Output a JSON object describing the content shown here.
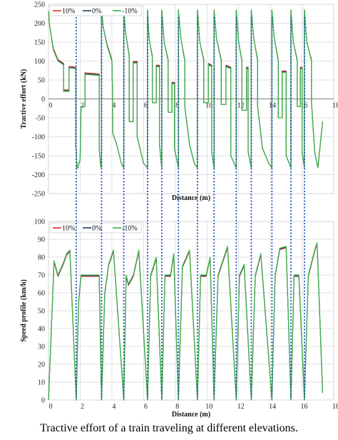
{
  "caption": "Tractive effort of a train traveling at different elevations.",
  "colors": {
    "plus10": "#e8262b",
    "zero": "#1f3864",
    "minus10": "#3cb34a",
    "divider": "#1f4fbf",
    "grid": "#d9d9d9"
  },
  "chart_data": [
    {
      "type": "line",
      "title": "",
      "xlabel": "Distance (m)",
      "ylabel": "Tractive effort (kN)",
      "xlim": [
        0,
        18
      ],
      "ylim": [
        -250,
        250
      ],
      "xticks": [
        "0",
        "2",
        "4",
        "6",
        "8",
        "10",
        "12",
        "14",
        "16",
        "18"
      ],
      "yticks": [
        "250",
        "200",
        "150",
        "100",
        "50",
        "0",
        "-50",
        "-100",
        "-150",
        "-200",
        "-250"
      ],
      "grid": true,
      "legend": "top-left",
      "series": [
        {
          "name": "10%",
          "color": "#e8262b",
          "x": [
            0.0,
            0.05,
            0.3,
            0.6,
            0.95,
            0.95,
            1.3,
            1.3,
            1.72,
            1.72,
            1.78,
            1.8,
            1.88
          ],
          "y": [
            232,
            200,
            130,
            100,
            90,
            20,
            20,
            82,
            80,
            -120,
            -170,
            -180,
            -182
          ]
        },
        {
          "name": "0%",
          "color": "#1f3864",
          "x": [
            0.0,
            0.05,
            0.3,
            0.6,
            0.95,
            0.95,
            1.3,
            1.3,
            1.72,
            1.72,
            1.78,
            1.8,
            1.88
          ],
          "y": [
            232,
            200,
            130,
            100,
            90,
            20,
            20,
            82,
            80,
            -120,
            -170,
            -180,
            -182
          ]
        },
        {
          "name": "-10%",
          "color": "#3cb34a",
          "x": [
            0.0,
            0.05,
            0.3,
            0.6,
            0.95,
            0.95,
            1.3,
            1.3,
            1.72,
            1.72,
            1.78,
            1.8,
            1.88
          ],
          "y": [
            232,
            200,
            130,
            100,
            90,
            20,
            20,
            82,
            80,
            -120,
            -170,
            -180,
            -182
          ]
        }
      ],
      "dividers_x": [
        1.75,
        3.35,
        4.75,
        6.25,
        7.15,
        8.2,
        9.4,
        10.45,
        11.85,
        12.8,
        14.1,
        15.3,
        16.15
      ]
    },
    {
      "type": "line",
      "title": "",
      "xlabel": "Distance (m)",
      "ylabel": "Speed profile (km/h)",
      "xlim": [
        0,
        18
      ],
      "ylim": [
        0,
        100
      ],
      "xticks": [
        "0",
        "2",
        "4",
        "6",
        "8",
        "10",
        "12",
        "14",
        "16",
        "18"
      ],
      "yticks": [
        "100",
        "90",
        "80",
        "70",
        "60",
        "50",
        "40",
        "30",
        "20",
        "10",
        "0"
      ],
      "grid": true,
      "legend": "top-left",
      "series": [
        {
          "name": "10%",
          "color": "#e8262b",
          "x": [
            0.0,
            0.35,
            0.6,
            0.9,
            1.15,
            1.35,
            1.75
          ],
          "y": [
            0,
            78,
            70,
            76,
            82,
            84,
            0
          ]
        },
        {
          "name": "0%",
          "color": "#1f3864",
          "x": [
            0.0,
            0.35,
            0.6,
            0.9,
            1.15,
            1.35,
            1.75
          ],
          "y": [
            0,
            78,
            70,
            76,
            82,
            84,
            0
          ]
        },
        {
          "name": "-10%",
          "color": "#3cb34a",
          "x": [
            0.0,
            0.35,
            0.6,
            0.9,
            1.15,
            1.35,
            1.75
          ],
          "y": [
            0,
            78,
            70,
            76,
            82,
            84,
            0
          ]
        }
      ],
      "dividers_x": [
        1.75,
        3.35,
        4.75,
        6.25,
        7.15,
        8.2,
        9.4,
        10.45,
        11.85,
        12.8,
        14.1,
        15.3,
        16.15
      ]
    }
  ]
}
